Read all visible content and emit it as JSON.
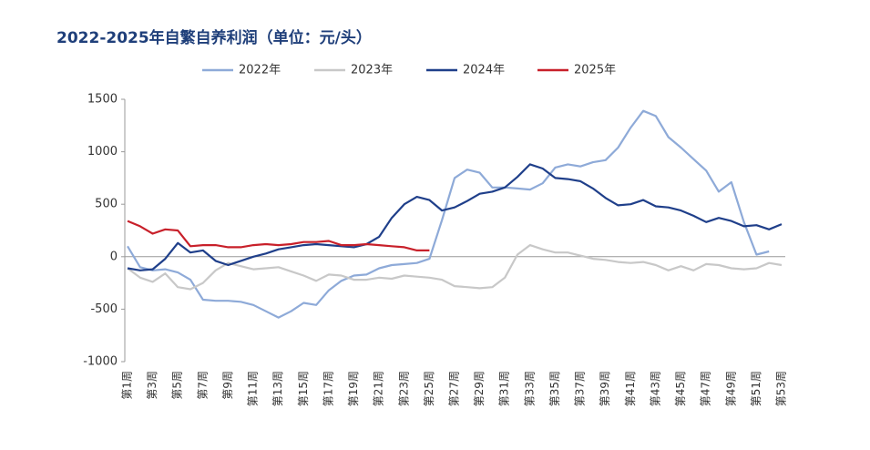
{
  "chart_data": {
    "type": "line",
    "title": "2022-2025年自繁自养利润（单位：元/头）",
    "categories": [
      "第1周",
      null,
      "第3周",
      null,
      "第5周",
      null,
      "第7周",
      null,
      "第9周",
      null,
      "第11周",
      null,
      "第13周",
      null,
      "第15周",
      null,
      "第17周",
      null,
      "第19周",
      null,
      "第21周",
      null,
      "第23周",
      null,
      "第25周",
      null,
      "第27周",
      null,
      "第29周",
      null,
      "第31周",
      null,
      "第33周",
      null,
      "第35周",
      null,
      "第37周",
      null,
      "第39周",
      null,
      "第41周",
      null,
      "第43周",
      null,
      "第45周",
      null,
      "第47周",
      null,
      "第49周",
      null,
      "第51周",
      null,
      "第53周"
    ],
    "series": [
      {
        "name": "2022年",
        "color": "#8eaad8",
        "values": [
          100,
          -100,
          -130,
          -120,
          -150,
          -220,
          -410,
          -420,
          -420,
          -430,
          -460,
          -520,
          -580,
          -520,
          -440,
          -460,
          -320,
          -230,
          -180,
          -170,
          -110,
          -80,
          -70,
          -60,
          -20,
          350,
          750,
          830,
          800,
          660,
          660,
          650,
          640,
          700,
          850,
          880,
          860,
          900,
          920,
          1040,
          1230,
          1390,
          1340,
          1140,
          1040,
          930,
          820,
          620,
          710,
          330,
          20,
          50,
          null
        ]
      },
      {
        "name": "2023年",
        "color": "#c8c8c8",
        "values": [
          -110,
          -200,
          -240,
          -160,
          -290,
          -310,
          -250,
          -130,
          -60,
          -90,
          -120,
          -110,
          -100,
          -140,
          -180,
          -230,
          -170,
          -180,
          -220,
          -220,
          -200,
          -210,
          -180,
          -190,
          -200,
          -220,
          -280,
          -290,
          -300,
          -290,
          -200,
          20,
          110,
          70,
          40,
          40,
          10,
          -20,
          -30,
          -50,
          -60,
          -50,
          -80,
          -130,
          -90,
          -130,
          -70,
          -80,
          -110,
          -120,
          -110,
          -60,
          -80
        ]
      },
      {
        "name": "2024年",
        "color": "#1f3f8a",
        "values": [
          -110,
          -130,
          -120,
          -20,
          130,
          40,
          60,
          -40,
          -80,
          -40,
          0,
          30,
          70,
          90,
          110,
          120,
          110,
          100,
          90,
          120,
          190,
          370,
          500,
          570,
          540,
          440,
          470,
          530,
          600,
          620,
          660,
          760,
          880,
          840,
          750,
          740,
          720,
          650,
          560,
          490,
          500,
          540,
          480,
          470,
          440,
          390,
          330,
          370,
          340,
          290,
          300,
          260,
          310
        ]
      },
      {
        "name": "2025年",
        "color": "#c8202a",
        "values": [
          340,
          290,
          220,
          260,
          250,
          100,
          110,
          110,
          90,
          90,
          110,
          120,
          110,
          120,
          140,
          140,
          150,
          110,
          110,
          120,
          110,
          100,
          90,
          60,
          60,
          null,
          null,
          null,
          null,
          null,
          null,
          null,
          null,
          null,
          null,
          null,
          null,
          null,
          null,
          null,
          null,
          null,
          null,
          null,
          null,
          null,
          null,
          null,
          null,
          null,
          null,
          null,
          null
        ]
      }
    ],
    "ylim": [
      -1000,
      1500
    ],
    "yticks": [
      -1000,
      -500,
      0,
      500,
      1000,
      1500
    ]
  }
}
